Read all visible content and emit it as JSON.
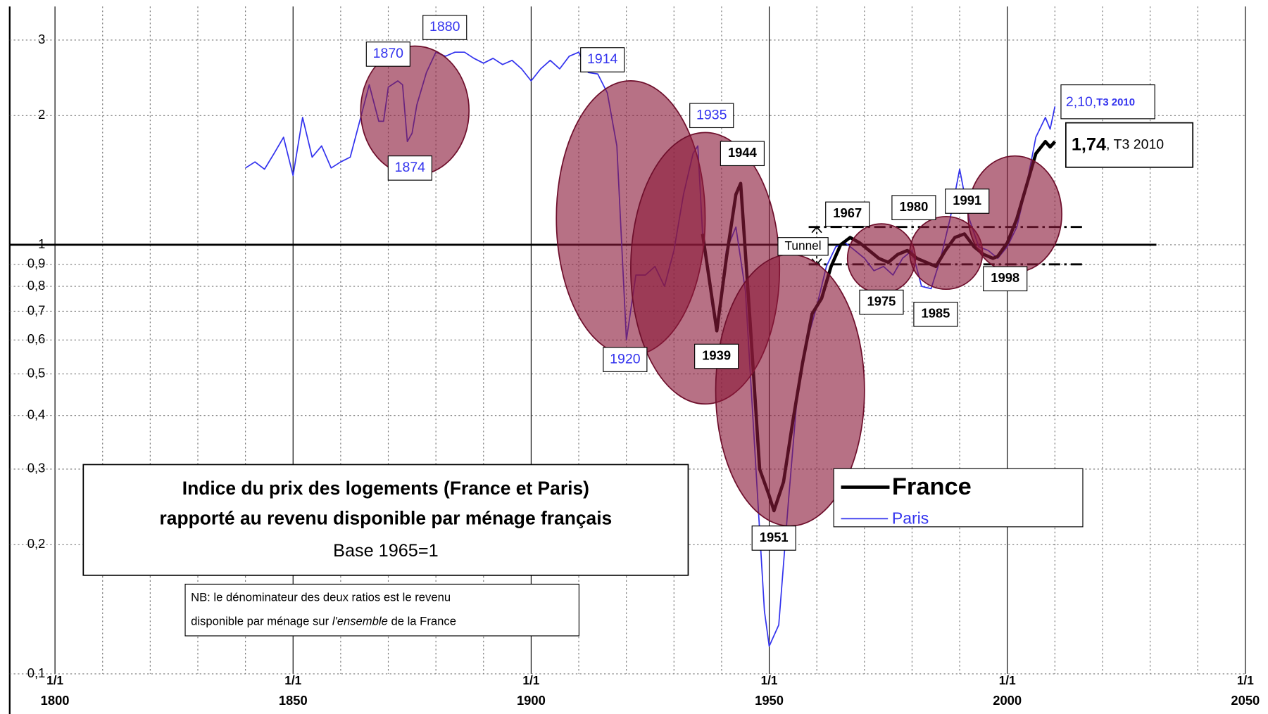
{
  "chart_data": {
    "type": "line",
    "title": "Indice du prix des logements (France et Paris)",
    "subtitle": "rapporté au revenu disponible par ménage français",
    "base_note": "Base 1965=1",
    "note": [
      "NB: le dénominateur des deux ratios est le revenu",
      "disponible par ménage sur ",
      "l'ensemble",
      " de la France"
    ],
    "log_scale": true,
    "grid": true,
    "xlim": [
      1800,
      2050
    ],
    "xtick_prefix": "1/1",
    "xticks": [
      1800,
      1850,
      1900,
      1950,
      2000,
      2050
    ],
    "xgrid": [
      1810,
      1820,
      1830,
      1840,
      1860,
      1870,
      1880,
      1890,
      1910,
      1920,
      1930,
      1940,
      1960,
      1970,
      1980,
      1990,
      2010,
      2020,
      2030,
      2040
    ],
    "ylim": [
      0.1,
      3.5
    ],
    "yticks": [
      {
        "value": 0.1,
        "label": "0,1"
      },
      {
        "value": 0.2,
        "label": "0,2"
      },
      {
        "value": 0.3,
        "label": "0,3"
      },
      {
        "value": 0.4,
        "label": "0,4"
      },
      {
        "value": 0.5,
        "label": "0,5"
      },
      {
        "value": 0.6,
        "label": "0,6"
      },
      {
        "value": 0.7,
        "label": "0,7"
      },
      {
        "value": 0.8,
        "label": "0,8"
      },
      {
        "value": 0.9,
        "label": "0,9"
      },
      1,
      2,
      3
    ],
    "reference_line": 1,
    "tunnel_label": "Tunnel",
    "tunnel_bounds": [
      0.9,
      1.1
    ],
    "legend": "bottom-right",
    "series": [
      {
        "name": "France",
        "color": "#000000",
        "x": [
          1936,
          1938,
          1939,
          1941,
          1943,
          1944,
          1946,
          1948,
          1950,
          1951,
          1953,
          1955,
          1957,
          1959,
          1961,
          1963,
          1965,
          1967,
          1969,
          1971,
          1973,
          1975,
          1977,
          1979,
          1981,
          1983,
          1985,
          1987,
          1989,
          1991,
          1993,
          1995,
          1997,
          1998,
          2000,
          2002,
          2004,
          2006,
          2008,
          2009,
          2010
        ],
        "values": [
          1.06,
          0.75,
          0.63,
          0.93,
          1.31,
          1.39,
          0.66,
          0.3,
          0.26,
          0.24,
          0.28,
          0.39,
          0.53,
          0.69,
          0.75,
          0.89,
          1.0,
          1.04,
          1.01,
          0.97,
          0.93,
          0.91,
          0.95,
          0.97,
          0.93,
          0.91,
          0.89,
          0.97,
          1.04,
          1.06,
          0.99,
          0.95,
          0.93,
          0.94,
          1.01,
          1.15,
          1.37,
          1.63,
          1.74,
          1.69,
          1.74
        ]
      },
      {
        "name": "Paris",
        "color": "#3333ee",
        "x": [
          1840,
          1842,
          1844,
          1846,
          1848,
          1850,
          1852,
          1854,
          1856,
          1858,
          1860,
          1862,
          1864,
          1866,
          1868,
          1869,
          1870,
          1872,
          1873,
          1874,
          1875,
          1876,
          1878,
          1880,
          1882,
          1884,
          1886,
          1888,
          1890,
          1892,
          1894,
          1896,
          1898,
          1900,
          1902,
          1904,
          1906,
          1908,
          1910,
          1912,
          1914,
          1916,
          1918,
          1920,
          1922,
          1924,
          1926,
          1928,
          1930,
          1932,
          1934,
          1935,
          1936,
          1938,
          1939,
          1941,
          1943,
          1945,
          1947,
          1949,
          1950,
          1952,
          1954,
          1956,
          1958,
          1960,
          1962,
          1964,
          1966,
          1968,
          1970,
          1972,
          1974,
          1976,
          1978,
          1980,
          1982,
          1984,
          1986,
          1988,
          1990,
          1992,
          1994,
          1996,
          1998,
          2000,
          2002,
          2004,
          2006,
          2008,
          2009,
          2010
        ],
        "values": [
          1.51,
          1.56,
          1.5,
          1.63,
          1.78,
          1.45,
          1.98,
          1.6,
          1.7,
          1.51,
          1.56,
          1.6,
          1.94,
          2.36,
          1.94,
          1.94,
          2.33,
          2.41,
          2.36,
          1.74,
          1.82,
          2.12,
          2.52,
          2.81,
          2.75,
          2.81,
          2.81,
          2.72,
          2.65,
          2.72,
          2.63,
          2.69,
          2.57,
          2.41,
          2.57,
          2.69,
          2.57,
          2.75,
          2.81,
          2.52,
          2.5,
          2.26,
          1.7,
          0.6,
          0.85,
          0.85,
          0.89,
          0.8,
          0.97,
          1.31,
          1.63,
          1.7,
          1.06,
          0.72,
          0.63,
          0.97,
          1.1,
          0.78,
          0.33,
          0.14,
          0.116,
          0.13,
          0.25,
          0.46,
          0.6,
          0.72,
          0.89,
          0.99,
          1.01,
          0.97,
          0.93,
          0.87,
          0.89,
          0.85,
          0.93,
          0.97,
          0.8,
          0.79,
          0.93,
          1.15,
          1.5,
          1.15,
          0.99,
          0.97,
          0.93,
          0.99,
          1.1,
          1.37,
          1.78,
          1.98,
          1.86,
          2.1
        ]
      }
    ],
    "annotations": [
      "1870",
      "1880",
      "1874",
      "1914",
      "1935",
      "1920",
      "1944",
      "1939",
      "1951",
      "1967",
      "1975",
      "1980",
      "1985",
      "1991",
      "1998"
    ],
    "end_labels": [
      {
        "value": "2,10,",
        "period": "T3 2010"
      },
      {
        "value": "1,74",
        "period": ", T3 2010"
      }
    ]
  }
}
